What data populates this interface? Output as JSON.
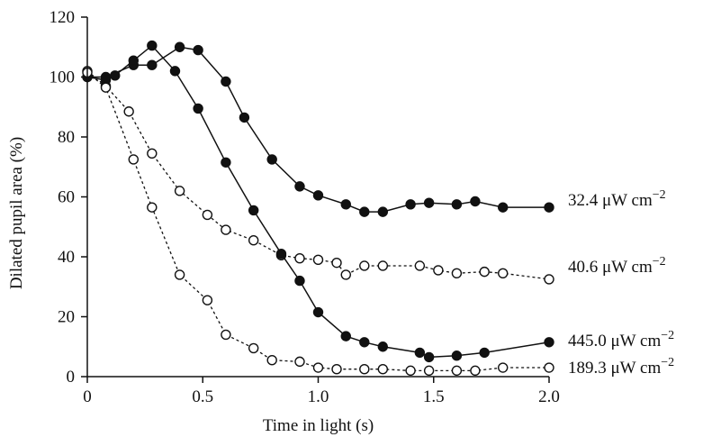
{
  "chart_data": {
    "type": "line",
    "title": "",
    "xlabel": "Time in light (s)",
    "ylabel": "Dilated pupil area (%)",
    "xlim": [
      0,
      2.0
    ],
    "ylim": [
      0,
      120
    ],
    "x_ticks": [
      "0",
      "0.5",
      "1.0",
      "1.5",
      "2.0"
    ],
    "x_tick_values": [
      0,
      0.5,
      1.0,
      1.5,
      2.0
    ],
    "y_ticks": [
      "0",
      "20",
      "40",
      "60",
      "80",
      "100",
      "120"
    ],
    "y_tick_values": [
      0,
      20,
      40,
      60,
      80,
      100,
      120
    ],
    "grid": false,
    "legend": "none",
    "series": [
      {
        "label_parts": [
          "32.4 μW cm",
          "−2"
        ],
        "marker": "filled",
        "line": "solid",
        "x": [
          0,
          0.08,
          0.2,
          0.28,
          0.4,
          0.48,
          0.6,
          0.68,
          0.8,
          0.92,
          1.0,
          1.12,
          1.2,
          1.28,
          1.4,
          1.48,
          1.6,
          1.68,
          1.8,
          2.0
        ],
        "y": [
          100.0,
          100.0,
          104.0,
          104.0,
          110.0,
          109.0,
          98.5,
          86.5,
          72.5,
          63.5,
          60.5,
          57.5,
          55.0,
          55.0,
          57.5,
          58.0,
          57.5,
          58.5,
          56.5,
          56.5
        ]
      },
      {
        "label_parts": [
          "40.6 μW cm",
          "−2"
        ],
        "marker": "open",
        "line": "dashed",
        "x": [
          0,
          0.08,
          0.18,
          0.28,
          0.4,
          0.52,
          0.6,
          0.72,
          0.84,
          0.92,
          1.0,
          1.08,
          1.12,
          1.2,
          1.28,
          1.44,
          1.52,
          1.6,
          1.72,
          1.8,
          2.0
        ],
        "y": [
          102.0,
          97.0,
          88.5,
          74.5,
          62.0,
          54.0,
          49.0,
          45.5,
          40.5,
          39.5,
          39.0,
          38.0,
          34.0,
          37.0,
          37.0,
          37.0,
          35.5,
          34.5,
          35.0,
          34.5,
          32.5
        ]
      },
      {
        "label_parts": [
          "445.0 μW cm",
          "−2"
        ],
        "marker": "filled",
        "line": "solid",
        "x": [
          0,
          0.08,
          0.12,
          0.2,
          0.28,
          0.38,
          0.48,
          0.6,
          0.72,
          0.84,
          0.92,
          1.0,
          1.12,
          1.2,
          1.28,
          1.44,
          1.48,
          1.6,
          1.72,
          2.0
        ],
        "y": [
          100.0,
          99.0,
          100.5,
          105.5,
          110.5,
          102.0,
          89.5,
          71.5,
          55.5,
          41.0,
          32.0,
          21.5,
          13.5,
          11.5,
          10.0,
          8.0,
          6.5,
          7.0,
          8.0,
          11.5
        ]
      },
      {
        "label_parts": [
          "189.3 μW cm",
          "−2"
        ],
        "marker": "open",
        "line": "dashed",
        "x": [
          0,
          0.08,
          0.2,
          0.28,
          0.4,
          0.52,
          0.6,
          0.72,
          0.8,
          0.92,
          1.0,
          1.08,
          1.2,
          1.28,
          1.4,
          1.48,
          1.6,
          1.68,
          1.8,
          2.0
        ],
        "y": [
          101.5,
          96.5,
          72.5,
          56.5,
          34.0,
          25.5,
          14.0,
          9.5,
          5.5,
          5.0,
          3.0,
          2.5,
          2.5,
          2.5,
          2.0,
          2.0,
          2.0,
          2.0,
          3.0,
          3.0
        ]
      }
    ]
  }
}
